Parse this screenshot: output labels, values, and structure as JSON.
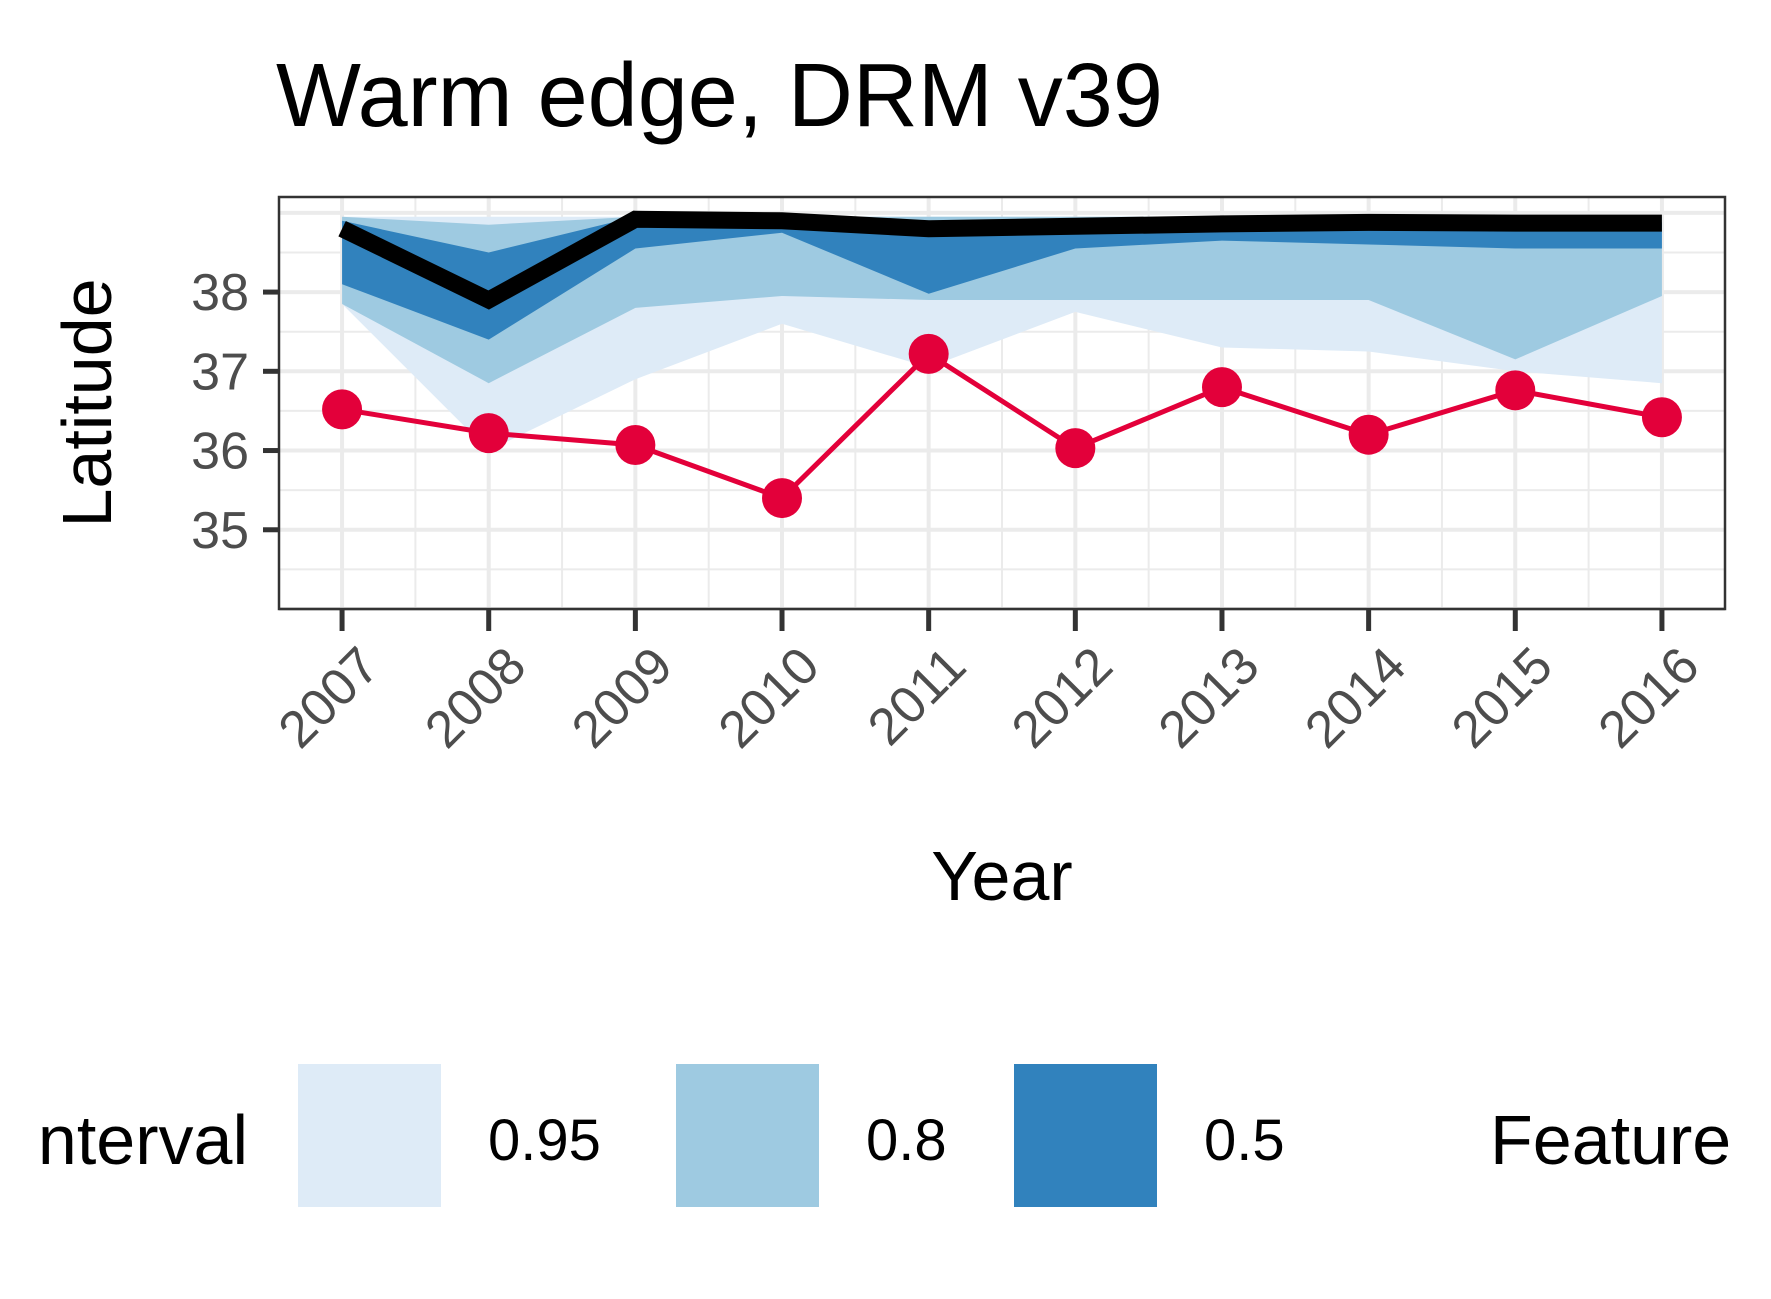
{
  "chart_data": {
    "type": "line",
    "title": "Warm edge, DRM v39",
    "xlabel": "Year",
    "ylabel": "Latitude",
    "x": [
      2007,
      2008,
      2009,
      2010,
      2011,
      2012,
      2013,
      2014,
      2015,
      2016
    ],
    "x_tick_labels": [
      "2007",
      "2008",
      "2009",
      "2010",
      "2011",
      "2012",
      "2013",
      "2014",
      "2015",
      "2016"
    ],
    "y_ticks": [
      35,
      36,
      37,
      38
    ],
    "y_tick_labels": [
      "35",
      "36",
      "37",
      "38"
    ],
    "xlim": [
      2006.57,
      2016.43
    ],
    "ylim": [
      34.0,
      39.2
    ],
    "grid": true,
    "legend_position": "bottom",
    "intervals": [
      {
        "name": "0.95",
        "color": "#deebf7",
        "lower": [
          37.85,
          36.0,
          36.9,
          37.6,
          37.05,
          37.75,
          37.3,
          37.25,
          37.0,
          36.85
        ],
        "upper": [
          38.95,
          38.95,
          38.95,
          38.95,
          38.95,
          38.95,
          38.95,
          38.95,
          38.95,
          38.95
        ]
      },
      {
        "name": "0.8",
        "color": "#9ecae1",
        "lower": [
          37.85,
          36.85,
          37.8,
          37.95,
          37.9,
          37.9,
          37.9,
          37.9,
          37.15,
          37.95
        ],
        "upper": [
          38.95,
          38.85,
          38.95,
          38.95,
          38.95,
          38.95,
          38.95,
          38.95,
          38.95,
          38.95
        ]
      },
      {
        "name": "0.5",
        "color": "#3182bd",
        "lower": [
          38.1,
          37.4,
          38.55,
          38.75,
          37.98,
          38.55,
          38.65,
          38.6,
          38.55,
          38.55
        ],
        "upper": [
          38.9,
          38.5,
          38.95,
          38.85,
          38.85,
          38.88,
          38.9,
          38.9,
          38.88,
          38.88
        ]
      }
    ],
    "series": [
      {
        "name": "",
        "color": "#000000",
        "values": [
          38.8,
          37.9,
          38.92,
          38.9,
          38.8,
          38.83,
          38.86,
          38.88,
          38.87,
          38.87
        ]
      },
      {
        "name": "",
        "color": "#e3003a",
        "values": [
          36.52,
          36.22,
          36.07,
          35.4,
          37.22,
          36.03,
          36.8,
          36.2,
          36.76,
          36.42
        ]
      }
    ],
    "legend": {
      "title": "Interval",
      "title_display": "nterval",
      "items": [
        {
          "label": "0.95",
          "color": "#deebf7"
        },
        {
          "label": "0.8",
          "color": "#9ecae1"
        },
        {
          "label": "0.5",
          "color": "#3182bd"
        }
      ],
      "second_title": "Feature",
      "second_title_display": "Feature"
    }
  }
}
